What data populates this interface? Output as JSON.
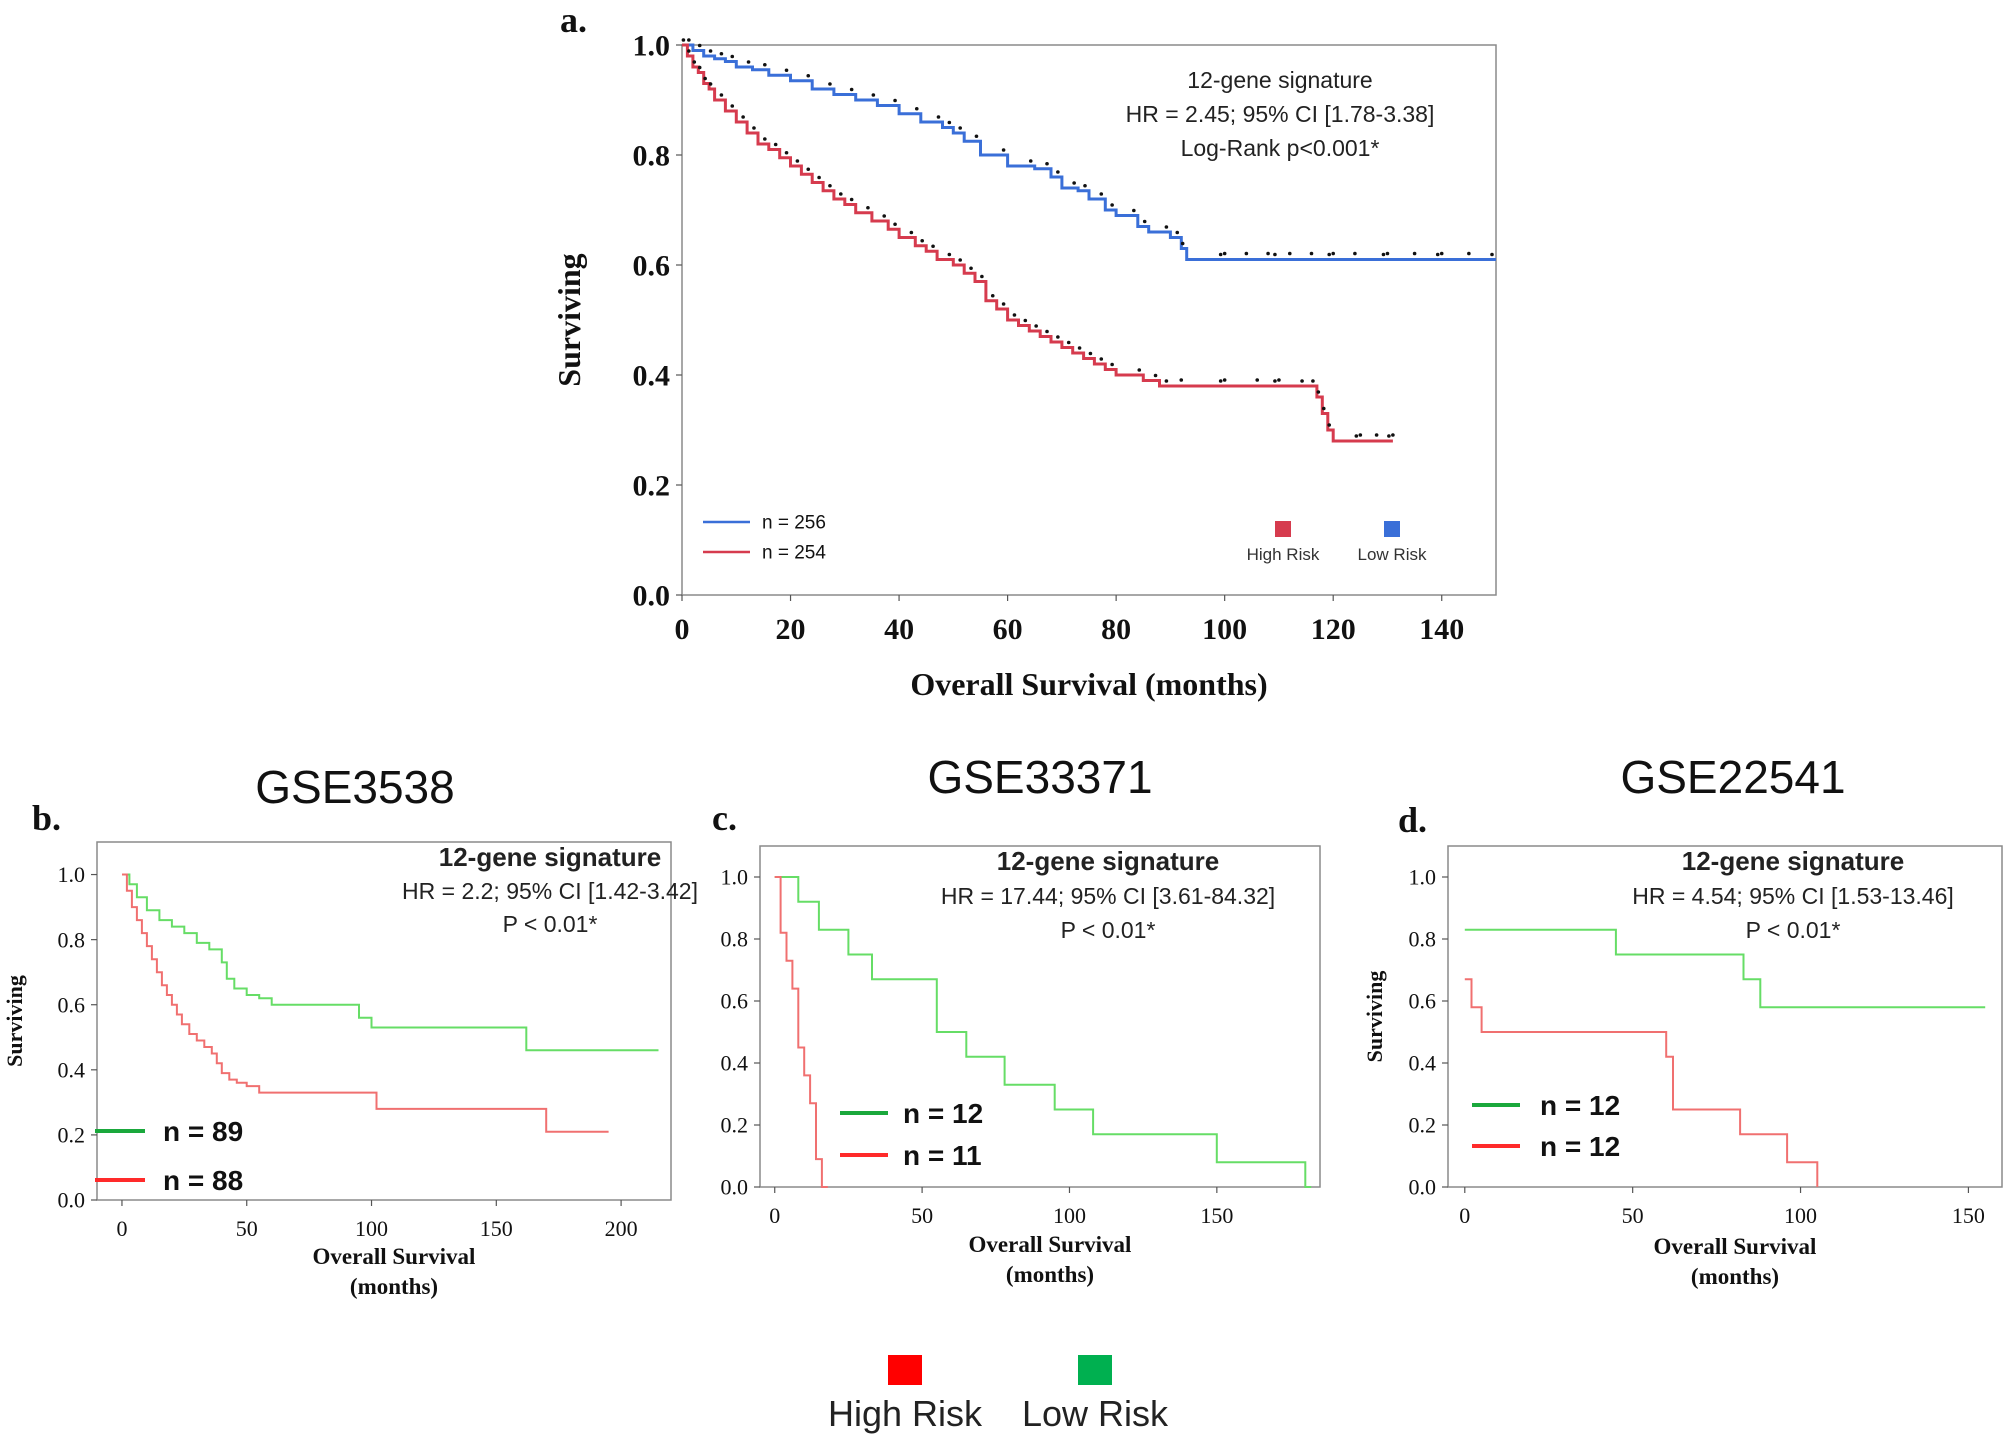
{
  "colors": {
    "blue": "#3a6fd8",
    "red_a": "#d63b4e",
    "red": "#ff2a2a",
    "green": "#1aa83c",
    "green_light": "#66dd66",
    "red_light": "#f07070",
    "legend_red": "#ff0000",
    "legend_green": "#00b050"
  },
  "chart_data": [
    {
      "id": "a",
      "panel_label": "a.",
      "type": "line",
      "subtype": "kaplan-meier",
      "title": "",
      "xlabel": "Overall Survival (months)",
      "ylabel": "Surviving",
      "xlim": [
        0,
        150
      ],
      "ylim": [
        0,
        1
      ],
      "xticks": [
        "0",
        "20",
        "40",
        "60",
        "80",
        "100",
        "120",
        "140"
      ],
      "xtick_values": [
        0,
        20,
        40,
        60,
        80,
        100,
        120,
        140
      ],
      "yticks": [
        "0.0",
        "0.2",
        "0.4",
        "0.6",
        "0.8",
        "1.0"
      ],
      "ytick_values": [
        0,
        0.2,
        0.4,
        0.6,
        0.8,
        1.0
      ],
      "annotation": [
        "12-gene signature",
        "HR = 2.45; 95% CI [1.78-3.38]",
        "Log-Rank p<0.001*"
      ],
      "n_legend": [
        "n = 256",
        "n = 254"
      ],
      "risk_legend": [
        "High Risk",
        "Low Risk"
      ],
      "series": [
        {
          "name": "Low Risk",
          "n": 256,
          "x": [
            0,
            2,
            4,
            6,
            8,
            10,
            13,
            16,
            20,
            24,
            28,
            32,
            36,
            40,
            44,
            48,
            50,
            52,
            55,
            60,
            65,
            68,
            70,
            73,
            75,
            78,
            80,
            84,
            86,
            90,
            92,
            93,
            100,
            110,
            120,
            130,
            140,
            150
          ],
          "y": [
            1.0,
            0.99,
            0.98,
            0.975,
            0.97,
            0.96,
            0.955,
            0.945,
            0.935,
            0.92,
            0.91,
            0.9,
            0.89,
            0.875,
            0.86,
            0.85,
            0.84,
            0.825,
            0.8,
            0.78,
            0.775,
            0.76,
            0.74,
            0.735,
            0.72,
            0.7,
            0.69,
            0.67,
            0.66,
            0.65,
            0.63,
            0.61,
            0.61,
            0.61,
            0.61,
            0.61,
            0.61,
            0.61
          ]
        },
        {
          "name": "High Risk",
          "n": 254,
          "x": [
            0,
            1,
            2,
            3,
            4,
            5,
            6,
            8,
            10,
            12,
            14,
            16,
            18,
            20,
            22,
            24,
            26,
            28,
            30,
            32,
            35,
            38,
            40,
            43,
            45,
            47,
            50,
            52,
            54,
            56,
            58,
            60,
            62,
            64,
            66,
            68,
            70,
            72,
            74,
            76,
            78,
            80,
            85,
            88,
            90,
            100,
            110,
            115,
            117,
            118,
            119,
            120,
            125,
            131
          ],
          "y": [
            1.0,
            0.98,
            0.96,
            0.95,
            0.93,
            0.92,
            0.9,
            0.88,
            0.86,
            0.84,
            0.82,
            0.81,
            0.795,
            0.78,
            0.765,
            0.75,
            0.735,
            0.72,
            0.71,
            0.695,
            0.68,
            0.665,
            0.65,
            0.635,
            0.625,
            0.61,
            0.6,
            0.585,
            0.57,
            0.535,
            0.52,
            0.5,
            0.49,
            0.48,
            0.47,
            0.46,
            0.45,
            0.44,
            0.43,
            0.42,
            0.41,
            0.4,
            0.39,
            0.38,
            0.38,
            0.38,
            0.38,
            0.38,
            0.36,
            0.33,
            0.3,
            0.28,
            0.28,
            0.28
          ]
        }
      ]
    },
    {
      "id": "b",
      "panel_label": "b.",
      "type": "line",
      "subtype": "kaplan-meier",
      "title": "GSE3538",
      "xlabel": "Overall Survival (months)",
      "xlabel_lines": [
        "Overall Survival",
        "(months)"
      ],
      "ylabel": "Surviving",
      "xlim": [
        -10,
        220
      ],
      "ylim": [
        0,
        1.1
      ],
      "xticks": [
        "0",
        "50",
        "100",
        "150",
        "200"
      ],
      "xtick_values": [
        0,
        50,
        100,
        150,
        200
      ],
      "yticks": [
        "0.0",
        "0.2",
        "0.4",
        "0.6",
        "0.8",
        "1.0"
      ],
      "ytick_values": [
        0,
        0.2,
        0.4,
        0.6,
        0.8,
        1.0
      ],
      "annotation": [
        "12-gene signature",
        "HR = 2.2; 95% CI [1.42-3.42]",
        "P < 0.01*"
      ],
      "n_legend": [
        "n = 89",
        "n = 88"
      ],
      "series": [
        {
          "name": "Low Risk",
          "n": 89,
          "x": [
            0,
            3,
            6,
            10,
            15,
            20,
            25,
            30,
            35,
            40,
            42,
            45,
            50,
            55,
            60,
            70,
            80,
            95,
            100,
            110,
            130,
            150,
            162,
            170,
            190,
            215
          ],
          "y": [
            1.0,
            0.97,
            0.93,
            0.89,
            0.86,
            0.84,
            0.82,
            0.79,
            0.77,
            0.73,
            0.68,
            0.65,
            0.63,
            0.62,
            0.6,
            0.6,
            0.6,
            0.56,
            0.53,
            0.53,
            0.53,
            0.53,
            0.46,
            0.46,
            0.46,
            0.46
          ]
        },
        {
          "name": "High Risk",
          "n": 88,
          "x": [
            0,
            2,
            4,
            6,
            8,
            10,
            12,
            14,
            16,
            18,
            20,
            22,
            24,
            27,
            30,
            33,
            36,
            38,
            40,
            43,
            46,
            50,
            55,
            60,
            70,
            80,
            90,
            100,
            102,
            120,
            140,
            160,
            170,
            180,
            195
          ],
          "y": [
            1.0,
            0.95,
            0.9,
            0.86,
            0.82,
            0.78,
            0.74,
            0.7,
            0.66,
            0.63,
            0.6,
            0.57,
            0.54,
            0.51,
            0.49,
            0.47,
            0.45,
            0.42,
            0.39,
            0.37,
            0.36,
            0.35,
            0.33,
            0.33,
            0.33,
            0.33,
            0.33,
            0.33,
            0.28,
            0.28,
            0.28,
            0.28,
            0.21,
            0.21,
            0.21
          ]
        }
      ]
    },
    {
      "id": "c",
      "panel_label": "c.",
      "type": "line",
      "subtype": "kaplan-meier",
      "title": "GSE33371",
      "xlabel": "Overall Survival (months)",
      "xlabel_lines": [
        "Overall Survival",
        "(months)"
      ],
      "ylabel": "",
      "xlim": [
        -5,
        185
      ],
      "ylim": [
        0,
        1.1
      ],
      "xticks": [
        "0",
        "50",
        "100",
        "150"
      ],
      "xtick_values": [
        0,
        50,
        100,
        150
      ],
      "yticks": [
        "0.0",
        "0.2",
        "0.4",
        "0.6",
        "0.8",
        "1.0"
      ],
      "ytick_values": [
        0,
        0.2,
        0.4,
        0.6,
        0.8,
        1.0
      ],
      "annotation": [
        "12-gene signature",
        "HR = 17.44; 95% CI [3.61-84.32]",
        "P < 0.01*"
      ],
      "n_legend": [
        "n = 12",
        "n = 11"
      ],
      "series": [
        {
          "name": "Low Risk",
          "n": 12,
          "x": [
            0,
            8,
            15,
            25,
            33,
            55,
            65,
            78,
            95,
            108,
            150,
            180,
            182
          ],
          "y": [
            1.0,
            0.92,
            0.83,
            0.75,
            0.67,
            0.5,
            0.42,
            0.33,
            0.25,
            0.17,
            0.08,
            0.0,
            0.0
          ],
          "final_drop": true
        },
        {
          "name": "High Risk",
          "n": 11,
          "x": [
            0,
            2,
            4,
            6,
            8,
            10,
            12,
            14,
            16,
            18
          ],
          "y": [
            1.0,
            0.82,
            0.73,
            0.64,
            0.45,
            0.36,
            0.27,
            0.09,
            0.0,
            0.0
          ]
        }
      ]
    },
    {
      "id": "d",
      "panel_label": "d.",
      "type": "line",
      "subtype": "kaplan-meier",
      "title": "GSE22541",
      "xlabel": "Overall Survival (months)",
      "xlabel_lines": [
        "Overall Survival",
        "(months)"
      ],
      "ylabel": "Surviving",
      "xlim": [
        -5,
        160
      ],
      "ylim": [
        0,
        1.1
      ],
      "xticks": [
        "0",
        "50",
        "100",
        "150"
      ],
      "xtick_values": [
        0,
        50,
        100,
        150
      ],
      "yticks": [
        "0.0",
        "0.2",
        "0.4",
        "0.6",
        "0.8",
        "1.0"
      ],
      "ytick_values": [
        0,
        0.2,
        0.4,
        0.6,
        0.8,
        1.0
      ],
      "annotation": [
        "12-gene signature",
        "HR = 4.54; 95% CI [1.53-13.46]",
        "P < 0.01*"
      ],
      "n_legend": [
        "n = 12",
        "n = 12"
      ],
      "series": [
        {
          "name": "Low Risk",
          "n": 12,
          "x": [
            0,
            45,
            83,
            88,
            155
          ],
          "y": [
            0.83,
            0.75,
            0.67,
            0.58,
            0.58
          ]
        },
        {
          "name": "High Risk",
          "n": 12,
          "x": [
            0,
            2,
            5,
            60,
            62,
            82,
            96,
            105
          ],
          "y": [
            0.67,
            0.58,
            0.5,
            0.42,
            0.25,
            0.17,
            0.08,
            0.0
          ]
        }
      ]
    }
  ],
  "bottom_legend": {
    "items": [
      {
        "label": "High Risk",
        "color": "#ff0000"
      },
      {
        "label": "Low Risk",
        "color": "#00b050"
      }
    ]
  }
}
